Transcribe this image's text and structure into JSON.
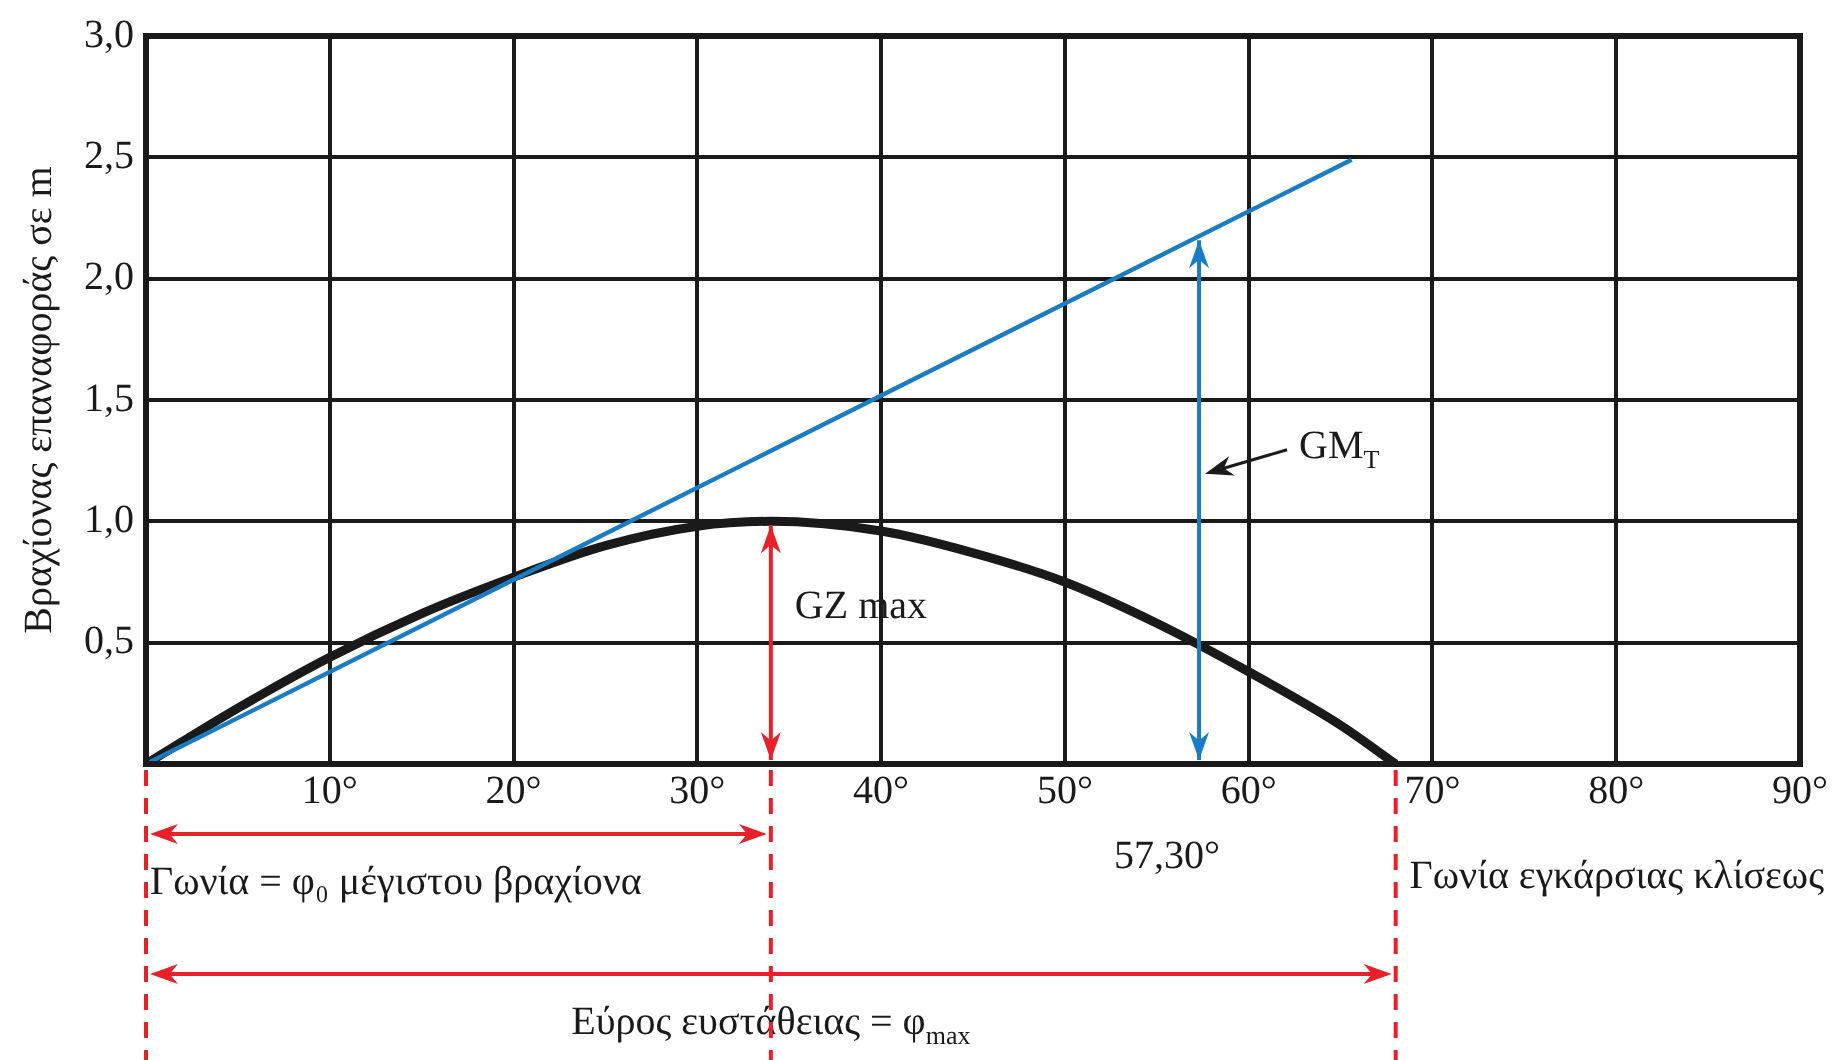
{
  "chart_data": {
    "type": "line",
    "ylabel": "Βραχίονας επαναφοράς σε m",
    "xlabel": "Γωνία εγκάρσιας κλίσεως",
    "x": [
      0,
      5,
      10,
      15,
      20,
      25,
      30,
      34,
      40,
      45,
      50,
      55,
      60,
      65,
      68
    ],
    "series": [
      {
        "color": "#1a1a1a",
        "values": [
          0,
          0.23,
          0.44,
          0.62,
          0.77,
          0.9,
          0.98,
          1.0,
          0.96,
          0.87,
          0.75,
          0.58,
          0.38,
          0.16,
          0
        ]
      },
      {
        "type": "line",
        "color": "#1a7cc4",
        "x": [
          0,
          65.6
        ],
        "values": [
          0,
          2.49
        ]
      }
    ],
    "xlim": [
      0,
      90
    ],
    "xticks": [
      {
        "value": 0,
        "label": null
      },
      {
        "value": 10,
        "label": "10°"
      },
      {
        "value": 20,
        "label": "20°"
      },
      {
        "value": 30,
        "label": "30°"
      },
      {
        "value": 40,
        "label": "40°"
      },
      {
        "value": 50,
        "label": "50°"
      },
      {
        "value": 60,
        "label": "60°"
      },
      {
        "value": 70,
        "label": "70°"
      },
      {
        "value": 80,
        "label": "80°"
      },
      {
        "value": 90,
        "label": "90°"
      }
    ],
    "ylim": [
      0,
      3
    ],
    "yticks": [
      {
        "value": 0,
        "label": null
      },
      {
        "value": 0.5,
        "label": "0,5"
      },
      {
        "value": 1,
        "label": "1,0"
      },
      {
        "value": 1.5,
        "label": "1,5"
      },
      {
        "value": 2,
        "label": "2,0"
      },
      {
        "value": 2.5,
        "label": "2,5"
      },
      {
        "value": 3,
        "label": "3,0"
      }
    ],
    "grid": true,
    "legend": false,
    "marker": "none",
    "line_style": "solid",
    "ref_lines": [
      {
        "axis": "x",
        "value": 57.3,
        "label": "57,30°",
        "color": "#1a7cc4"
      }
    ],
    "annotations": [
      {
        "text": "GZ max",
        "x": 34,
        "y": 1.0
      },
      "GM$_{T}$",
      "Γωνία = φ₀ μέγιστου βραχίονα",
      "Εύρος ευστάθειας = φ$_{max}$"
    ]
  }
}
